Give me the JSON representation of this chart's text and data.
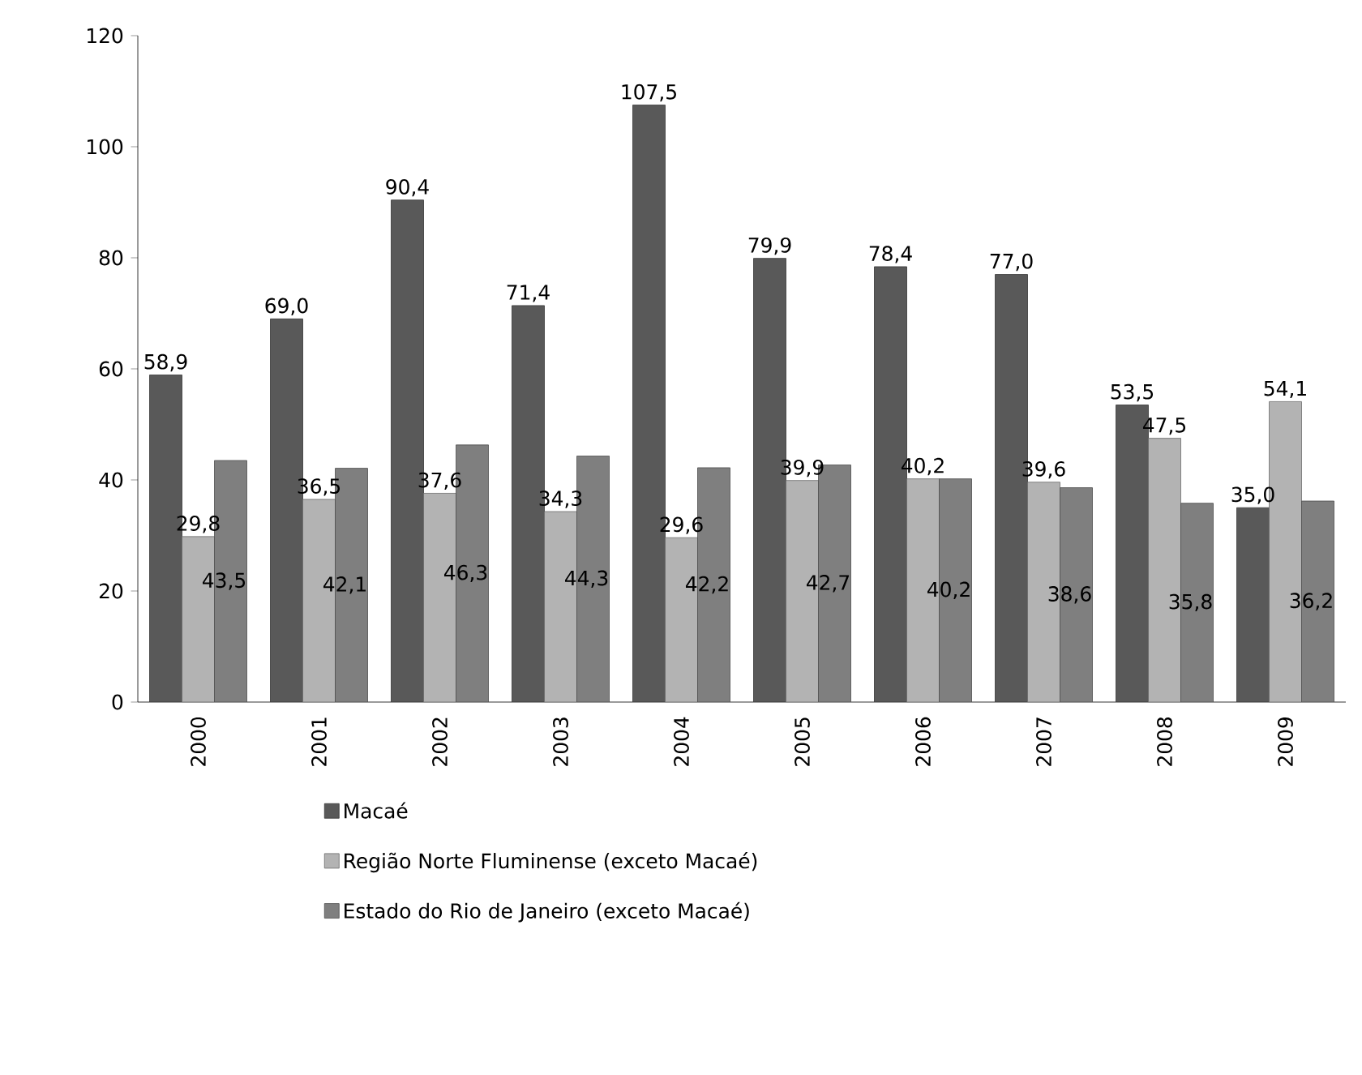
{
  "chart_data": {
    "type": "bar",
    "categories": [
      "2000",
      "2001",
      "2002",
      "2003",
      "2004",
      "2005",
      "2006",
      "2007",
      "2008",
      "2009"
    ],
    "series": [
      {
        "name": "Macaé",
        "color": "#595959",
        "values": [
          58.9,
          69.0,
          90.4,
          71.4,
          107.5,
          79.9,
          78.4,
          77.0,
          53.5,
          35.0
        ],
        "value_labels": [
          "58,9",
          "69,0",
          "90,4",
          "71,4",
          "107,5",
          "79,9",
          "78,4",
          "77,0",
          "53,5",
          "35,0"
        ]
      },
      {
        "name": "Região Norte Fluminense (exceto Macaé)",
        "color": "#b3b3b3",
        "values": [
          29.8,
          36.5,
          37.6,
          34.3,
          29.6,
          39.9,
          40.2,
          39.6,
          47.5,
          54.1
        ],
        "value_labels": [
          "29,8",
          "36,5",
          "37,6",
          "34,3",
          "29,6",
          "39,9",
          "40,2",
          "39,6",
          "47,5",
          "54,1"
        ]
      },
      {
        "name": "Estado do Rio de Janeiro (exceto Macaé)",
        "color": "#7f7f7f",
        "values": [
          43.5,
          42.1,
          46.3,
          44.3,
          42.2,
          42.7,
          40.2,
          38.6,
          35.8,
          36.2
        ],
        "value_labels": [
          "43,5",
          "42,1",
          "46,3",
          "44,3",
          "42,2",
          "42,7",
          "40,2",
          "38,6",
          "35,8",
          "36,2"
        ]
      }
    ],
    "ylim": [
      0,
      120
    ],
    "yticks": [
      0,
      20,
      40,
      60,
      80,
      100,
      120
    ],
    "legend": "bottom"
  }
}
